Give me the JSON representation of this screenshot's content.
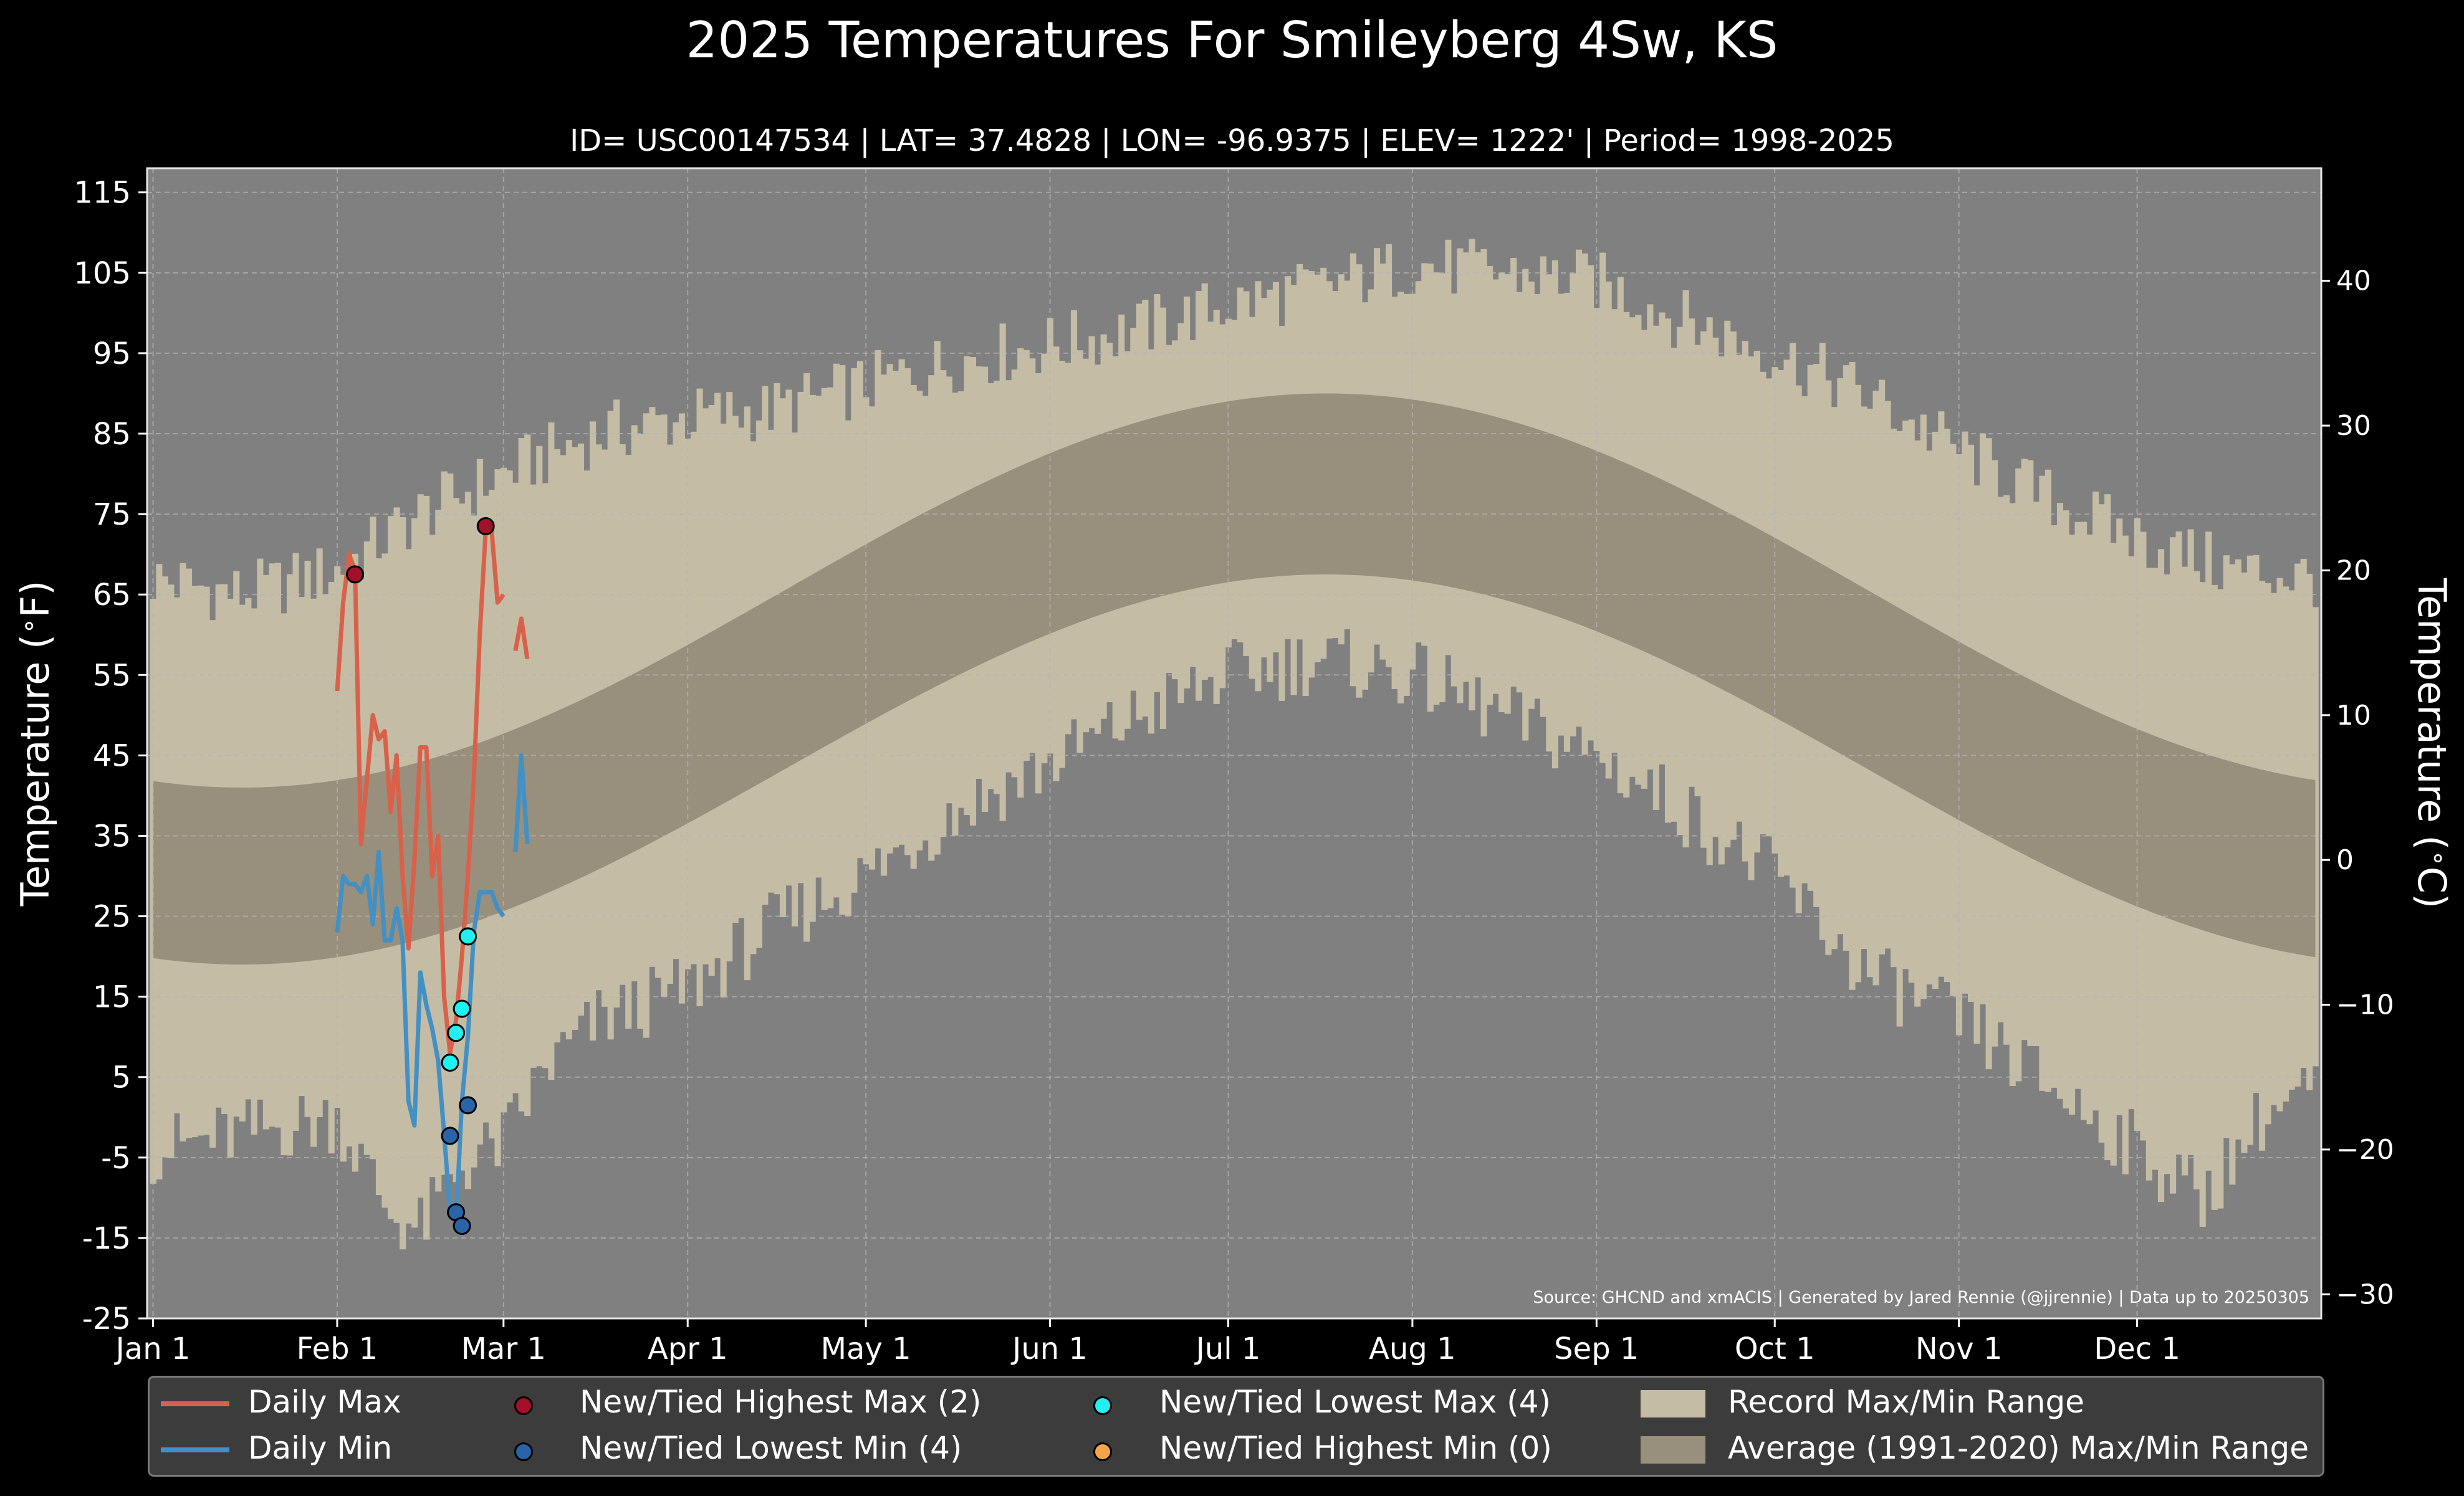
{
  "title": "2025 Temperatures For Smileyberg 4Sw, KS",
  "subtitle": "ID= USC00147534 | LAT= 37.4828 | LON= -96.9375 | ELEV= 1222' | Period= 1998-2025",
  "source": "Source: GHCND and xmACIS | Generated by Jared Rennie (@jjrennie) | Data up to 20250305",
  "legend": {
    "daily_max": "Daily Max",
    "daily_min": "Daily Min",
    "highest_max": "New/Tied Highest Max (2)",
    "lowest_min": "New/Tied Lowest Min (4)",
    "lowest_max": "New/Tied Lowest Max (4)",
    "highest_min": "New/Tied Highest Min (0)",
    "record_range": "Record Max/Min Range",
    "average_range": "Average (1991-2020) Max/Min Range"
  },
  "colors": {
    "background": "#000000",
    "plot_bg": "#808080",
    "record_range": "#c4bca5",
    "average_range": "#998f7d",
    "daily_max": "#d9614a",
    "daily_min": "#4390c4",
    "highest_max": "#a3102a",
    "lowest_min": "#2a64a8",
    "lowest_max": "#1ff0f0",
    "highest_min": "#f5a549"
  },
  "chart_data": {
    "type": "line",
    "xlabel": "",
    "ylabel": "Temperature ($^\\circ$F)",
    "ylabel_right": "Temperature ($^\\circ$C)",
    "ylim": [
      -25,
      118
    ],
    "xlim_day": [
      -1,
      365
    ],
    "yticks": [
      115,
      105,
      95,
      85,
      75,
      65,
      55,
      45,
      35,
      25,
      15,
      5,
      -5,
      -15,
      -25
    ],
    "yticks_right": [
      40,
      30,
      20,
      10,
      0,
      -10,
      -20,
      -30
    ],
    "x_ticks": [
      {
        "label": "Jan 1",
        "day": 0
      },
      {
        "label": "Feb 1",
        "day": 31
      },
      {
        "label": "Mar 1",
        "day": 59
      },
      {
        "label": "Apr 1",
        "day": 90
      },
      {
        "label": "May 1",
        "day": 120
      },
      {
        "label": "Jun 1",
        "day": 151
      },
      {
        "label": "Jul 1",
        "day": 181
      },
      {
        "label": "Aug 1",
        "day": 212
      },
      {
        "label": "Sep 1",
        "day": 243
      },
      {
        "label": "Oct 1",
        "day": 273
      },
      {
        "label": "Nov 1",
        "day": 304
      },
      {
        "label": "Dec 1",
        "day": 334
      }
    ],
    "record_max_anchors": [
      [
        0,
        67
      ],
      [
        15,
        65
      ],
      [
        31,
        68
      ],
      [
        45,
        75
      ],
      [
        59,
        80
      ],
      [
        75,
        85
      ],
      [
        90,
        87
      ],
      [
        105,
        88
      ],
      [
        120,
        91
      ],
      [
        135,
        94
      ],
      [
        151,
        96
      ],
      [
        166,
        98
      ],
      [
        181,
        101
      ],
      [
        196,
        103
      ],
      [
        212,
        106
      ],
      [
        227,
        105
      ],
      [
        243,
        104
      ],
      [
        258,
        99
      ],
      [
        273,
        95
      ],
      [
        288,
        90
      ],
      [
        304,
        83
      ],
      [
        319,
        77
      ],
      [
        334,
        72
      ],
      [
        350,
        68
      ],
      [
        365,
        67
      ]
    ],
    "record_min_anchors": [
      [
        0,
        -4
      ],
      [
        15,
        -2
      ],
      [
        31,
        0
      ],
      [
        40,
        -12
      ],
      [
        45,
        -14
      ],
      [
        52,
        -6
      ],
      [
        59,
        -3
      ],
      [
        66,
        6
      ],
      [
        75,
        12
      ],
      [
        90,
        16
      ],
      [
        105,
        24
      ],
      [
        120,
        30
      ],
      [
        135,
        38
      ],
      [
        151,
        44
      ],
      [
        166,
        50
      ],
      [
        181,
        55
      ],
      [
        196,
        57
      ],
      [
        212,
        55
      ],
      [
        227,
        50
      ],
      [
        243,
        45
      ],
      [
        258,
        38
      ],
      [
        273,
        30
      ],
      [
        288,
        18
      ],
      [
        304,
        12
      ],
      [
        319,
        4
      ],
      [
        334,
        -4
      ],
      [
        345,
        -10
      ],
      [
        355,
        0
      ],
      [
        365,
        4
      ]
    ],
    "normal_high": {
      "min_day": 15,
      "min": 41,
      "max_day": 212,
      "max": 90
    },
    "normal_low": {
      "min_day": 15,
      "min": 19,
      "max_day": 205,
      "max": 67.5
    },
    "series": [
      {
        "name": "Daily Max",
        "x": [
          31,
          32,
          33,
          34,
          35,
          36,
          37,
          38,
          39,
          40,
          41,
          42,
          43,
          44,
          45,
          46,
          47,
          48,
          49,
          50,
          51,
          52,
          53,
          54,
          55,
          56,
          57,
          58,
          59,
          60,
          61,
          62,
          63
        ],
        "y": [
          53,
          64,
          70,
          68,
          34,
          42,
          50,
          47,
          48,
          38,
          45,
          30,
          21,
          32,
          46,
          46,
          30,
          35,
          15,
          8,
          12,
          20,
          30,
          42,
          60,
          73,
          73,
          64,
          65,
          null,
          58,
          62,
          57
        ]
      },
      {
        "name": "Daily Min",
        "x": [
          31,
          32,
          33,
          34,
          35,
          36,
          37,
          38,
          39,
          40,
          41,
          42,
          43,
          44,
          45,
          46,
          47,
          48,
          49,
          50,
          51,
          52,
          53,
          54,
          55,
          56,
          57,
          58,
          59,
          60,
          61,
          62,
          63
        ],
        "y": [
          23,
          30,
          29,
          29,
          28,
          30,
          24,
          33,
          22,
          22,
          26,
          22,
          2,
          -1,
          18,
          14,
          11,
          7,
          -2,
          -12,
          -13,
          2,
          10,
          23,
          28,
          28,
          28,
          26,
          25,
          null,
          33,
          45,
          34
        ]
      }
    ],
    "markers": {
      "highest_max": [
        [
          34,
          67.5
        ],
        [
          56,
          73.5
        ]
      ],
      "lowest_min": [
        [
          50,
          -2.3
        ],
        [
          51,
          -11.8
        ],
        [
          52,
          -13.5
        ],
        [
          53,
          1.5
        ]
      ],
      "lowest_max": [
        [
          50,
          6.8
        ],
        [
          51,
          10.5
        ],
        [
          52,
          13.5
        ],
        [
          53,
          22.5
        ]
      ],
      "highest_min": []
    }
  }
}
